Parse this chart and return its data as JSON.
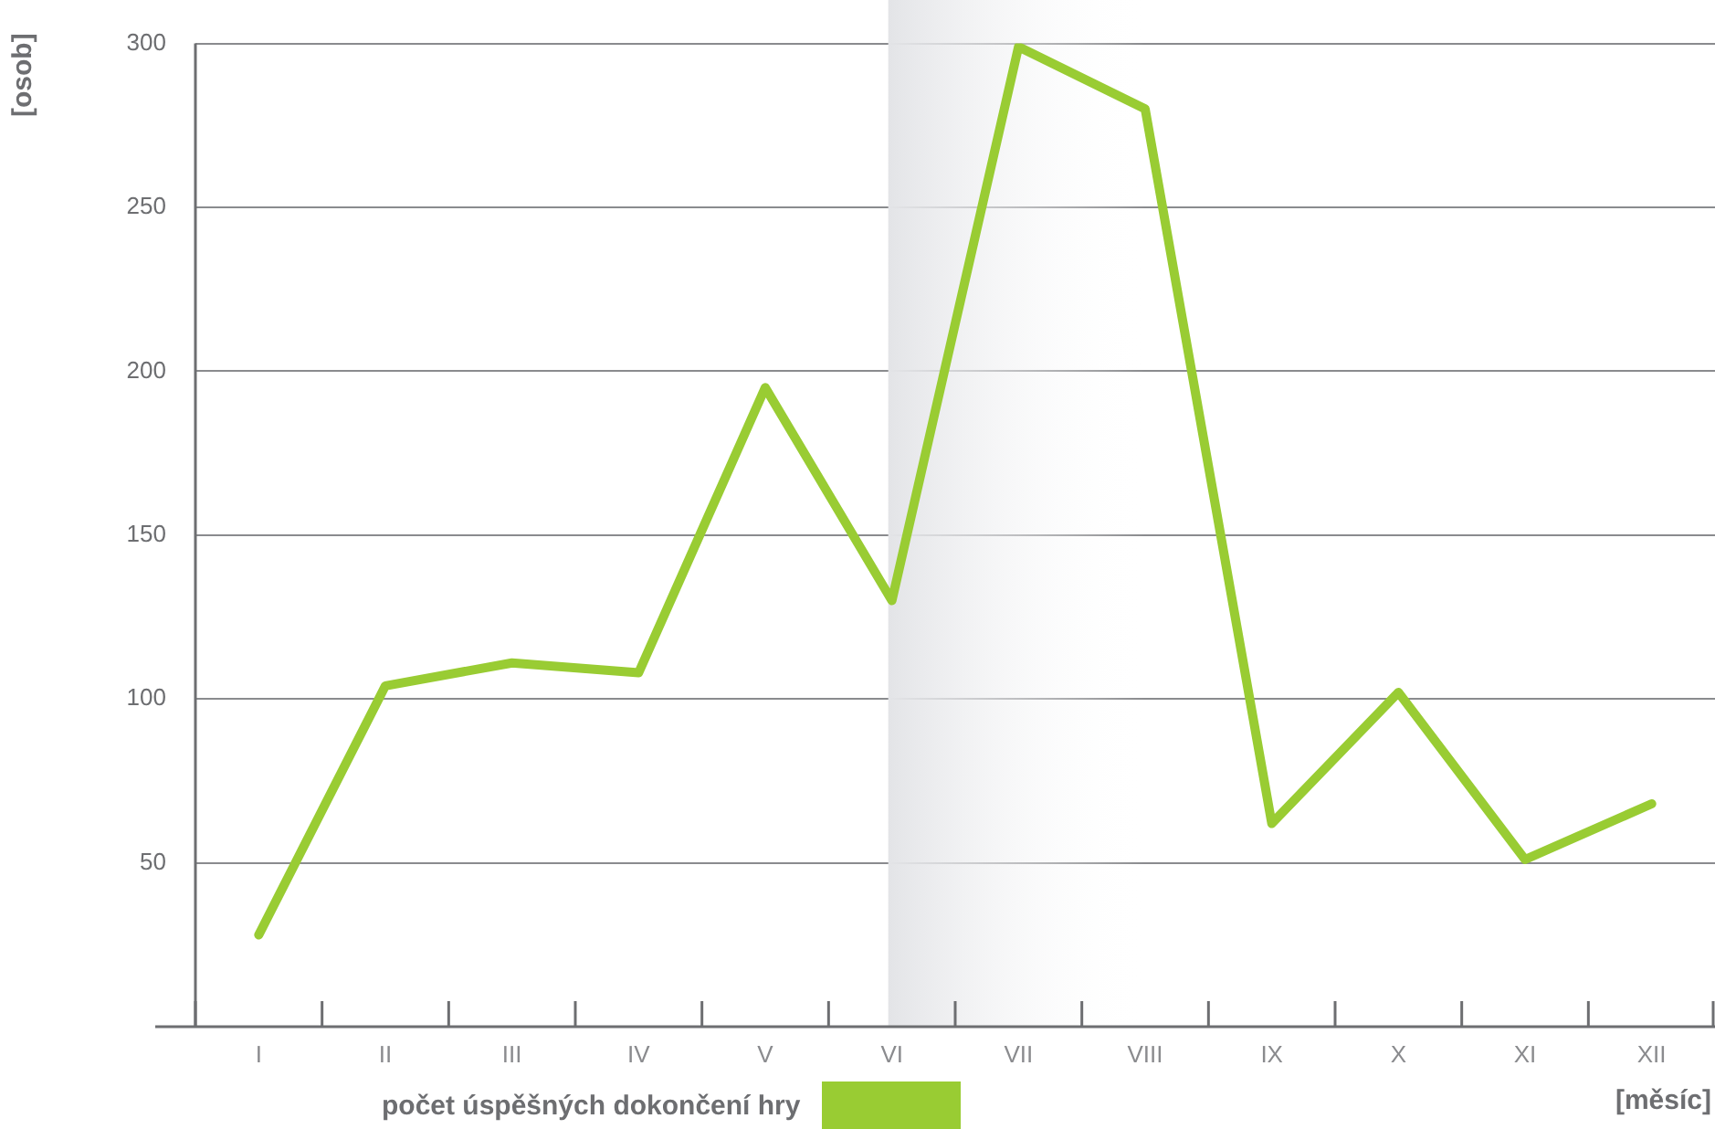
{
  "chart_data": {
    "type": "line",
    "xlabel": "[měsíc]",
    "ylabel": "[osob]",
    "categories": [
      "I",
      "II",
      "III",
      "IV",
      "V",
      "VI",
      "VII",
      "VIII",
      "IX",
      "X",
      "XI",
      "XII"
    ],
    "series": [
      {
        "name": "počet úspěšných dokončení hry",
        "color": "#99cc33",
        "values": [
          28,
          104,
          111,
          108,
          195,
          130,
          299,
          280,
          62,
          102,
          51,
          68
        ]
      }
    ],
    "ylim": [
      0,
      300
    ],
    "yticks": [
      {
        "value": 0,
        "label": null
      },
      50,
      100,
      150,
      200,
      250,
      300
    ],
    "bands": [
      {
        "axis": "x",
        "from": "VI",
        "to": "VIII",
        "color": "#e3e4e7"
      }
    ],
    "grid": "y",
    "legend": "bottom",
    "marker": "none",
    "line_style": "solid"
  }
}
